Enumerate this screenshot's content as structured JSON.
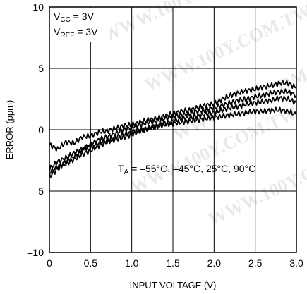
{
  "chart_data": {
    "type": "line",
    "xlabel": "INPUT VOLTAGE (V)",
    "ylabel": "ERROR (ppm)",
    "xlim": [
      0,
      3.0
    ],
    "ylim": [
      -10,
      10
    ],
    "xticks": [
      {
        "v": 0,
        "label": "0"
      },
      {
        "v": 0.5,
        "label": "0.5"
      },
      {
        "v": 1.0,
        "label": "1.0"
      },
      {
        "v": 1.5,
        "label": "1.5"
      },
      {
        "v": 2.0,
        "label": "2.0"
      },
      {
        "v": 2.5,
        "label": "2.5"
      },
      {
        "v": 3.0,
        "label": "3.0"
      }
    ],
    "yticks": [
      {
        "v": 10,
        "label": "10"
      },
      {
        "v": 5,
        "label": "5"
      },
      {
        "v": 0,
        "label": "0"
      },
      {
        "v": -5,
        "label": "–5"
      },
      {
        "v": -10,
        "label": "–10"
      }
    ],
    "grid": true,
    "annotations": {
      "vcc": {
        "main": "V",
        "sub": "CC",
        "rest": " = 3V"
      },
      "vref": {
        "main": "V",
        "sub": "REF",
        "rest": " = 3V"
      },
      "ta": {
        "main": "T",
        "sub": "A",
        "rest": " = –55°C, –45°C, 25°C, 90°C"
      }
    },
    "watermark": "WWW.100Y.COM.TW",
    "series": [
      {
        "values": [
          [
            0,
            -1.2
          ],
          [
            0.1,
            -1.6
          ],
          [
            0.2,
            -1.0
          ],
          [
            0.3,
            -1.1
          ],
          [
            0.4,
            -0.6
          ],
          [
            0.5,
            -0.5
          ],
          [
            0.6,
            -0.2
          ],
          [
            0.7,
            -0.1
          ],
          [
            0.8,
            0.1
          ],
          [
            0.9,
            0.3
          ],
          [
            1.0,
            0.4
          ],
          [
            1.1,
            0.6
          ],
          [
            1.2,
            0.8
          ],
          [
            1.3,
            0.9
          ],
          [
            1.4,
            1.1
          ],
          [
            1.5,
            1.3
          ],
          [
            1.6,
            1.5
          ],
          [
            1.7,
            1.6
          ],
          [
            1.8,
            1.8
          ],
          [
            1.9,
            2.0
          ],
          [
            2.0,
            2.1
          ],
          [
            2.1,
            2.5
          ],
          [
            2.2,
            2.8
          ],
          [
            2.3,
            3.0
          ],
          [
            2.4,
            3.2
          ],
          [
            2.5,
            3.3
          ],
          [
            2.6,
            3.5
          ],
          [
            2.7,
            3.6
          ],
          [
            2.8,
            3.8
          ],
          [
            2.9,
            3.8
          ],
          [
            3.0,
            3.4
          ]
        ]
      },
      {
        "values": [
          [
            0,
            -3.8
          ],
          [
            0.1,
            -3.2
          ],
          [
            0.2,
            -2.6
          ],
          [
            0.3,
            -2.2
          ],
          [
            0.4,
            -1.6
          ],
          [
            0.5,
            -1.2
          ],
          [
            0.6,
            -0.8
          ],
          [
            0.7,
            -0.6
          ],
          [
            0.8,
            -0.3
          ],
          [
            0.9,
            0
          ],
          [
            1.0,
            0.2
          ],
          [
            1.1,
            0.4
          ],
          [
            1.2,
            0.6
          ],
          [
            1.3,
            0.7
          ],
          [
            1.4,
            0.9
          ],
          [
            1.5,
            1.1
          ],
          [
            1.6,
            1.2
          ],
          [
            1.7,
            1.3
          ],
          [
            1.8,
            1.5
          ],
          [
            1.9,
            1.6
          ],
          [
            2.0,
            1.8
          ],
          [
            2.1,
            2.0
          ],
          [
            2.2,
            2.2
          ],
          [
            2.3,
            2.4
          ],
          [
            2.4,
            2.5
          ],
          [
            2.5,
            2.7
          ],
          [
            2.6,
            2.8
          ],
          [
            2.7,
            3.0
          ],
          [
            2.8,
            3.1
          ],
          [
            2.9,
            3.1
          ],
          [
            3.0,
            2.8
          ]
        ]
      },
      {
        "values": [
          [
            0,
            -3.5
          ],
          [
            0.1,
            -3.0
          ],
          [
            0.2,
            -2.8
          ],
          [
            0.3,
            -2.4
          ],
          [
            0.4,
            -2.0
          ],
          [
            0.5,
            -1.7
          ],
          [
            0.6,
            -1.3
          ],
          [
            0.7,
            -1.0
          ],
          [
            0.8,
            -0.8
          ],
          [
            0.9,
            -0.6
          ],
          [
            1.0,
            -0.4
          ],
          [
            1.1,
            -0.1
          ],
          [
            1.2,
            0.1
          ],
          [
            1.3,
            0.3
          ],
          [
            1.4,
            0.5
          ],
          [
            1.5,
            0.7
          ],
          [
            1.6,
            0.9
          ],
          [
            1.7,
            1.0
          ],
          [
            1.8,
            1.1
          ],
          [
            1.9,
            1.3
          ],
          [
            2.0,
            1.4
          ],
          [
            2.1,
            1.6
          ],
          [
            2.2,
            1.8
          ],
          [
            2.3,
            1.9
          ],
          [
            2.4,
            2.1
          ],
          [
            2.5,
            2.2
          ],
          [
            2.6,
            2.3
          ],
          [
            2.7,
            2.4
          ],
          [
            2.8,
            2.6
          ],
          [
            2.9,
            2.5
          ],
          [
            3.0,
            2.2
          ]
        ]
      },
      {
        "values": [
          [
            0,
            -3.2
          ],
          [
            0.1,
            -2.6
          ],
          [
            0.2,
            -2.3
          ],
          [
            0.3,
            -1.9
          ],
          [
            0.4,
            -1.6
          ],
          [
            0.5,
            -1.3
          ],
          [
            0.6,
            -1.1
          ],
          [
            0.7,
            -0.9
          ],
          [
            0.8,
            -0.6
          ],
          [
            0.9,
            -0.4
          ],
          [
            1.0,
            -0.2
          ],
          [
            1.1,
            0
          ],
          [
            1.2,
            0.1
          ],
          [
            1.3,
            0.3
          ],
          [
            1.4,
            0.4
          ],
          [
            1.5,
            0.5
          ],
          [
            1.6,
            0.6
          ],
          [
            1.7,
            0.7
          ],
          [
            1.8,
            0.8
          ],
          [
            1.9,
            0.9
          ],
          [
            2.0,
            1.0
          ],
          [
            2.1,
            1.1
          ],
          [
            2.2,
            1.2
          ],
          [
            2.3,
            1.3
          ],
          [
            2.4,
            1.4
          ],
          [
            2.5,
            1.5
          ],
          [
            2.6,
            1.5
          ],
          [
            2.7,
            1.6
          ],
          [
            2.8,
            1.6
          ],
          [
            2.9,
            1.5
          ],
          [
            3.0,
            1.2
          ]
        ]
      }
    ]
  }
}
